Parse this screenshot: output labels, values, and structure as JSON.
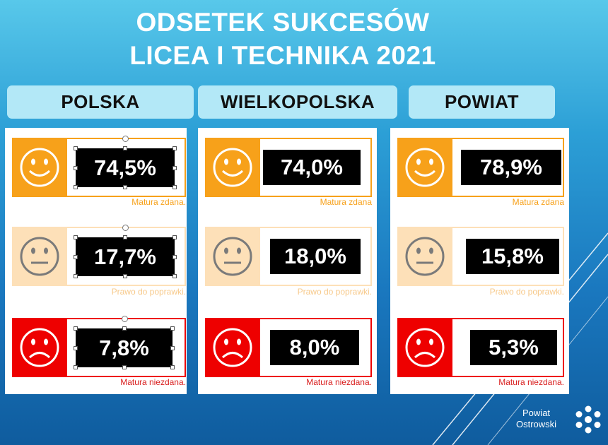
{
  "chart_data": {
    "type": "table",
    "title_lines": [
      "ODSETEK SUKCESÓW",
      "LICEA I TECHNIKA  2021"
    ],
    "regions": [
      "POLSKA",
      "WIELKOPOLSKA",
      "POWIAT"
    ],
    "rows": [
      {
        "face": "smile-face-icon",
        "colors": {
          "fill": "#f7a11a",
          "border": "#f7a11a",
          "caption": "#f7a11a"
        },
        "values_text": [
          "74,5%",
          "74,0%",
          "78,9%"
        ],
        "values": [
          74.5,
          74.0,
          78.9
        ],
        "captions": [
          "Matura zdana.",
          "Matura zdana",
          "Matura zdana"
        ]
      },
      {
        "face": "neutral-face-icon",
        "colors": {
          "fill": "#fde0b8",
          "border": "#fde0b8",
          "caption": "#f7c98a"
        },
        "values_text": [
          "17,7%",
          "18,0%",
          "15,8%"
        ],
        "values": [
          17.7,
          18.0,
          15.8
        ],
        "captions": [
          "Prawo do poprawki.",
          "Prawo do poprawki.",
          "Prawo do poprawki."
        ]
      },
      {
        "face": "sad-face-icon",
        "colors": {
          "fill": "#ee0000",
          "border": "#ee0000",
          "caption": "#d92020"
        },
        "values_text": [
          "7,8%",
          "8,0%",
          "5,3%"
        ],
        "values": [
          7.8,
          8.0,
          5.3
        ],
        "captions": [
          "Matura niezdana.",
          "Matura niezdana.",
          "Matura niezdana."
        ]
      }
    ]
  },
  "logo": {
    "line1": "Powiat",
    "line2": "Ostrowski",
    "icon": "flower-dots-icon"
  }
}
